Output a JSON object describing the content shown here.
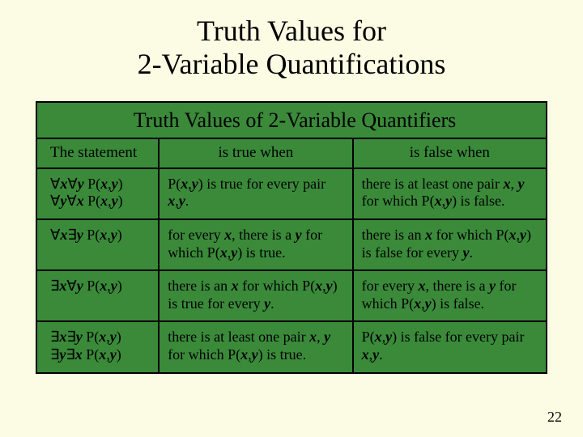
{
  "slide": {
    "title": "Truth Values for\n2-Variable Quantifications",
    "page_number": "22",
    "background_color": "#fcfce4",
    "table_background_color": "#3a8a3a",
    "border_color": "#000000"
  },
  "table": {
    "caption": "Truth Values of 2-Variable Quantifiers",
    "columns": [
      "The statement",
      "is true when",
      "is false when"
    ],
    "rows": [
      {
        "statement_lines": [
          "∀x∀y P(x,y)",
          "∀y∀x P(x,y)"
        ],
        "true_when": "P(x,y) is true for every pair x,y.",
        "false_when": "there is at least one pair x, y for which P(x,y) is false."
      },
      {
        "statement_lines": [
          "∀x∃y P(x,y)"
        ],
        "true_when": "for every x, there is a y for which P(x,y) is true.",
        "false_when": "there is an x for which P(x,y) is false for every y."
      },
      {
        "statement_lines": [
          "∃x∀y P(x,y)"
        ],
        "true_when": "there is an x for which P(x,y) is true for every y.",
        "false_when": "for every x, there is a y for which P(x,y) is false."
      },
      {
        "statement_lines": [
          "∃x∃y P(x,y)",
          "∃y∃x P(x,y)"
        ],
        "true_when": "there is at least one pair x, y for which P(x,y) is true.",
        "false_when": "P(x,y) is false for every pair x,y."
      }
    ]
  }
}
